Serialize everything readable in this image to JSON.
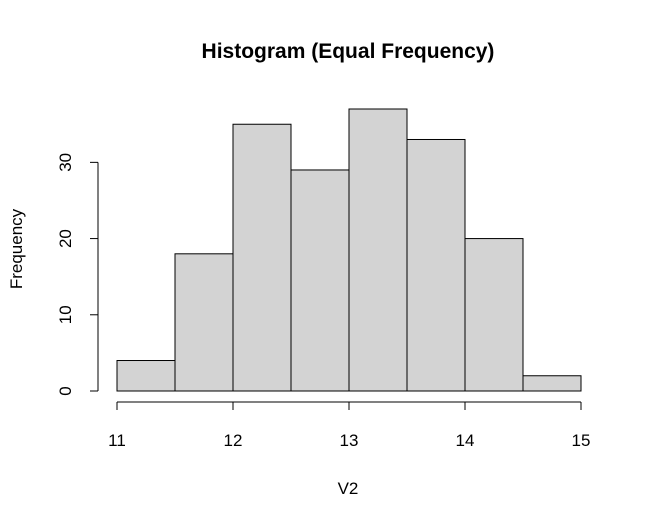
{
  "chart_data": {
    "type": "bar",
    "title": "Histogram (Equal Frequency)",
    "xlabel": "V2",
    "ylabel": "Frequency",
    "bins": [
      {
        "start": 11.0,
        "end": 11.5,
        "count": 4
      },
      {
        "start": 11.5,
        "end": 12.0,
        "count": 18
      },
      {
        "start": 12.0,
        "end": 12.5,
        "count": 35
      },
      {
        "start": 12.5,
        "end": 13.0,
        "count": 29
      },
      {
        "start": 13.0,
        "end": 13.5,
        "count": 37
      },
      {
        "start": 13.5,
        "end": 14.0,
        "count": 33
      },
      {
        "start": 14.0,
        "end": 14.5,
        "count": 20
      },
      {
        "start": 14.5,
        "end": 15.0,
        "count": 2
      }
    ],
    "xticks": [
      11,
      12,
      13,
      14,
      15
    ],
    "yticks": [
      0,
      10,
      20,
      30
    ],
    "xlim": [
      11,
      15
    ],
    "ylim": [
      0,
      37
    ],
    "grid": false,
    "bar_color": "#d3d3d3",
    "edge_color": "#000000"
  }
}
